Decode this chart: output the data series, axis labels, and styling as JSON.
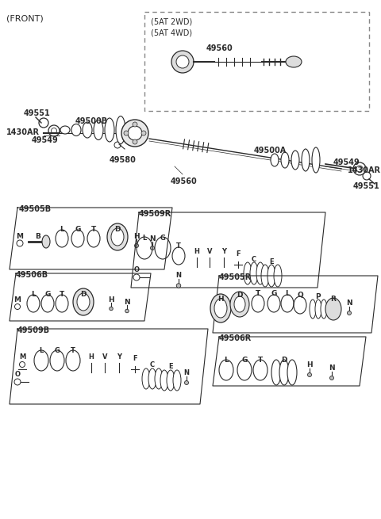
{
  "bg_color": "#ffffff",
  "lc": "#2a2a2a",
  "title": "(FRONT)",
  "inset_labels": [
    "(5AT 2WD)",
    "(5AT 4WD)"
  ],
  "fig_w": 4.8,
  "fig_h": 6.55,
  "dpi": 100
}
